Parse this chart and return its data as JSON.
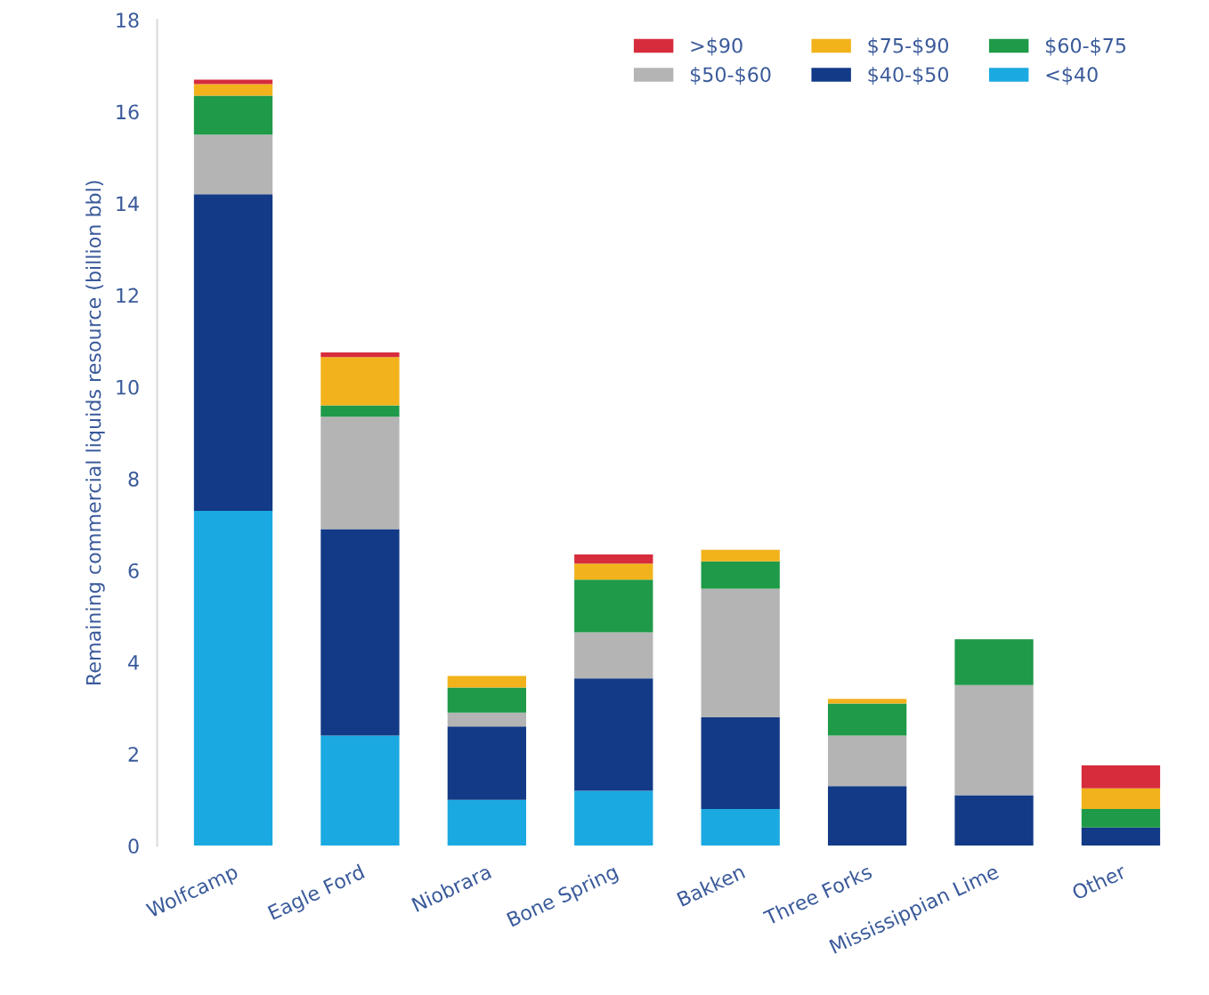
{
  "chart_data": {
    "type": "bar",
    "stacked": true,
    "ylabel": "Remaining commercial liquids resource (billion bbl)",
    "categories": [
      "Wolfcamp",
      "Eagle Ford",
      "Niobrara",
      "Bone Spring",
      "Bakken",
      "Three Forks",
      "Mississippian Lime",
      "Other"
    ],
    "series": [
      {
        "name": "<$40",
        "color": "#1ba9e1",
        "values": [
          7.3,
          2.4,
          1.0,
          1.2,
          0.8,
          null,
          null,
          null
        ]
      },
      {
        "name": "$40-$50",
        "color": "#123a86",
        "values": [
          6.9,
          4.5,
          1.6,
          2.45,
          2.0,
          1.3,
          1.1,
          0.4
        ]
      },
      {
        "name": "$50-$60",
        "color": "#b4b4b4",
        "values": [
          1.3,
          2.45,
          0.3,
          1.0,
          2.8,
          1.1,
          2.4,
          null
        ]
      },
      {
        "name": "$60-$75",
        "color": "#1f9a48",
        "values": [
          0.85,
          0.25,
          0.55,
          1.15,
          0.6,
          0.7,
          1.0,
          0.4
        ]
      },
      {
        "name": "$75-$90",
        "color": "#f2b21c",
        "values": [
          0.25,
          1.05,
          0.25,
          0.35,
          0.25,
          0.1,
          null,
          0.45
        ]
      },
      {
        "name": ">$90",
        "color": "#d62c3c",
        "values": [
          0.1,
          0.1,
          null,
          0.2,
          null,
          null,
          null,
          0.5
        ]
      }
    ],
    "ylim": [
      0,
      18
    ],
    "yticks": [
      0,
      2,
      4,
      6,
      8,
      10,
      12,
      14,
      16,
      18
    ],
    "grid": false,
    "legend": "top"
  }
}
